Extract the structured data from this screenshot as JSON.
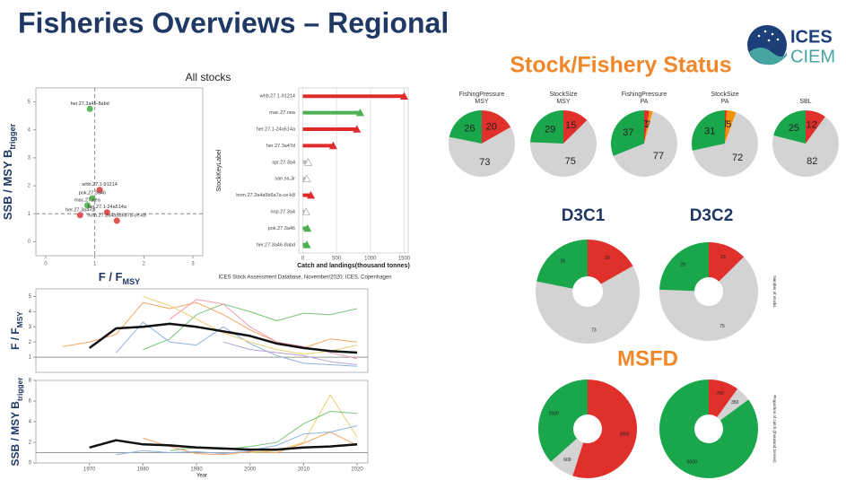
{
  "title": "Fisheries Overviews – Regional",
  "logo": {
    "main": "ICES",
    "sub": "CIEM"
  },
  "headings": {
    "status": "Stock/Fishery Status",
    "d3c1": "D3C1",
    "d3c2": "D3C2",
    "msfd": "MSFD"
  },
  "chart_data": [
    {
      "type": "scatter",
      "title": "All stocks",
      "xlabel": {
        "text": "F / F",
        "sub": "MSY"
      },
      "ylabel": {
        "text": "SSB / MSY B",
        "sub": "trigger"
      },
      "point_labels": [
        "her.27.3a46-8abd",
        "whb.27.1-91214",
        "pok.27.3a46",
        "mac.27.nea",
        "her.27.3a47d",
        "her.27.1-24a514a",
        "hom.27.2a4a5b6a7a-ce-k8"
      ],
      "x": [
        0.9,
        1.1,
        0.95,
        0.85,
        0.7,
        1.25,
        1.45
      ],
      "values": [
        4.75,
        1.85,
        1.55,
        1.3,
        0.95,
        1.05,
        0.75
      ],
      "colors": [
        "#5cb85c",
        "#e05555",
        "#5cb85c",
        "#5cb85c",
        "#e05555",
        "#e05555",
        "#e05555"
      ],
      "xlim": [
        -0.2,
        3.2
      ],
      "ylim": [
        -0.5,
        5.5
      ],
      "xticks": [
        0,
        1,
        2,
        3
      ],
      "yticks": [
        0,
        1,
        2,
        3,
        4,
        5
      ],
      "ref_x": 1,
      "ref_y": 1
    },
    {
      "type": "barh",
      "categories": [
        "whb.27.1-91214",
        "mac.27.nea",
        "her.27.1-24a514a",
        "her.27.3a47d",
        "spr.27.3a4",
        "san.sa.3r",
        "hom.27.2a4a5b6a7a-ce-k8",
        "nop.27.3a4",
        "pok.27.3a46",
        "her.27.3a46-8abd"
      ],
      "values": [
        1500,
        850,
        800,
        450,
        80,
        60,
        120,
        50,
        70,
        60
      ],
      "colors": [
        "#e02b2b",
        "#4caf50",
        "#e02b2b",
        "#e02b2b",
        "#bbbbbb",
        "#bbbbbb",
        "#e02b2b",
        "#bbbbbb",
        "#4caf50",
        "#4caf50"
      ],
      "xlabel": "Catch and landings(thousand tonnes)",
      "ylabel": "StockKeyLabel",
      "source": "ICES Stock Assessment Database, November/2020. ICES, Copenhagen",
      "xlim": [
        -60,
        1560
      ],
      "xticks": [
        0,
        500,
        1000,
        1500
      ]
    },
    {
      "type": "line",
      "ylabel": {
        "text": "F / F",
        "sub": "MSY"
      },
      "x": [
        1965,
        1970,
        1975,
        1980,
        1985,
        1990,
        1995,
        2000,
        2005,
        2010,
        2015,
        2020
      ],
      "xlim": [
        1960,
        2022
      ],
      "ylim": [
        0,
        5.5
      ],
      "yticks": [
        1,
        2,
        3,
        4,
        5
      ],
      "ref_y": 1,
      "series": [
        {
          "color": "#f4a460",
          "values": [
            1.7,
            2.0,
            2.5,
            4.6,
            4.2,
            4.6,
            3.8,
            2.8,
            2.0,
            1.6,
            2.2,
            2.0
          ]
        },
        {
          "color": "#7cc47c",
          "values": [
            null,
            null,
            null,
            1.5,
            2.2,
            3.8,
            4.5,
            4.0,
            3.4,
            3.9,
            3.8,
            4.2
          ]
        },
        {
          "color": "#8fb3e0",
          "values": [
            null,
            null,
            1.3,
            3.3,
            2.0,
            1.8,
            3.0,
            1.9,
            1.1,
            0.6,
            0.5,
            0.4
          ]
        },
        {
          "color": "#f19cb0",
          "values": [
            null,
            null,
            null,
            null,
            3.5,
            4.8,
            4.5,
            3.0,
            2.0,
            1.7,
            1.3,
            0.9
          ]
        },
        {
          "color": "#e8d070",
          "values": [
            null,
            null,
            null,
            5.0,
            4.4,
            3.5,
            2.6,
            2.0,
            1.5,
            1.2,
            1.4,
            1.8
          ]
        },
        {
          "color": "#b9a0d8",
          "values": [
            null,
            null,
            null,
            null,
            null,
            null,
            2.0,
            1.5,
            1.3,
            1.1,
            0.7,
            0.5
          ]
        },
        {
          "color": "#111111",
          "width": 2.5,
          "values": [
            null,
            1.6,
            2.9,
            3.0,
            3.2,
            3.0,
            2.7,
            2.4,
            1.9,
            1.6,
            1.4,
            1.3
          ]
        }
      ]
    },
    {
      "type": "line",
      "ylabel": {
        "text": "SSB / MSY B",
        "sub": "trigger"
      },
      "xlabel": "Year",
      "x": [
        1965,
        1970,
        1975,
        1980,
        1985,
        1990,
        1995,
        2000,
        2005,
        2010,
        2015,
        2020
      ],
      "xlim": [
        1960,
        2022
      ],
      "ylim": [
        0,
        8
      ],
      "xticks": [
        1970,
        1980,
        1990,
        2000,
        2010,
        2020
      ],
      "yticks": [
        0,
        2,
        4,
        6,
        8
      ],
      "ref_y": 1,
      "series": [
        {
          "color": "#f4a460",
          "values": [
            null,
            null,
            null,
            2.4,
            1.6,
            0.9,
            0.8,
            1.1,
            1.0,
            1.9,
            3.0,
            1.7
          ]
        },
        {
          "color": "#e8d070",
          "values": [
            null,
            null,
            null,
            null,
            null,
            null,
            null,
            1.0,
            1.2,
            2.0,
            6.6,
            2.5
          ]
        },
        {
          "color": "#7cc47c",
          "values": [
            null,
            null,
            null,
            null,
            1.2,
            1.5,
            1.3,
            1.6,
            2.0,
            3.8,
            5.0,
            4.8
          ]
        },
        {
          "color": "#8fb3e0",
          "values": [
            null,
            null,
            0.8,
            1.2,
            1.0,
            1.1,
            0.9,
            1.2,
            1.7,
            2.8,
            3.0,
            3.6
          ]
        },
        {
          "color": "#111111",
          "width": 2.5,
          "values": [
            null,
            1.5,
            2.2,
            1.8,
            1.7,
            1.5,
            1.4,
            1.3,
            1.3,
            1.5,
            1.6,
            1.8
          ]
        }
      ]
    },
    {
      "type": "pie",
      "title": [
        "FishingPressure",
        "MSY"
      ],
      "values": [
        20,
        73,
        26
      ],
      "colors": [
        "#e0302b",
        "#d3d3d3",
        "#1aa64b"
      ]
    },
    {
      "type": "pie",
      "title": [
        "StockSize",
        "MSY"
      ],
      "values": [
        15,
        75,
        29
      ],
      "colors": [
        "#e0302b",
        "#d3d3d3",
        "#1aa64b"
      ]
    },
    {
      "type": "pie",
      "title": [
        "FishingPressure",
        "PA"
      ],
      "values": [
        3,
        2,
        77,
        37
      ],
      "colors": [
        "#e0302b",
        "#f39200",
        "#d3d3d3",
        "#1aa64b"
      ]
    },
    {
      "type": "pie",
      "title": [
        "StockSize",
        "PA"
      ],
      "values": [
        1,
        5,
        72,
        31
      ],
      "colors": [
        "#e0302b",
        "#f39200",
        "#d3d3d3",
        "#1aa64b"
      ]
    },
    {
      "type": "pie",
      "title": [
        "SBL"
      ],
      "values": [
        12,
        82,
        25
      ],
      "colors": [
        "#e0302b",
        "#d3d3d3",
        "#1aa64b"
      ]
    },
    {
      "type": "donut",
      "values": [
        20,
        73,
        26
      ],
      "colors": [
        "#e0302b",
        "#d3d3d3",
        "#1aa64b"
      ]
    },
    {
      "type": "donut",
      "ylabel": "Number of stocks",
      "values": [
        15,
        75,
        29
      ],
      "colors": [
        "#e0302b",
        "#d3d3d3",
        "#1aa64b"
      ]
    },
    {
      "type": "donut",
      "values": [
        3900,
        600,
        2600
      ],
      "colors": [
        "#e0302b",
        "#d3d3d3",
        "#1aa64b"
      ]
    },
    {
      "type": "donut",
      "ylabel": "Proportion of catch (thousand tonnes)",
      "values": [
        700,
        350,
        6000
      ],
      "colors": [
        "#e0302b",
        "#d3d3d3",
        "#1aa64b"
      ]
    }
  ]
}
